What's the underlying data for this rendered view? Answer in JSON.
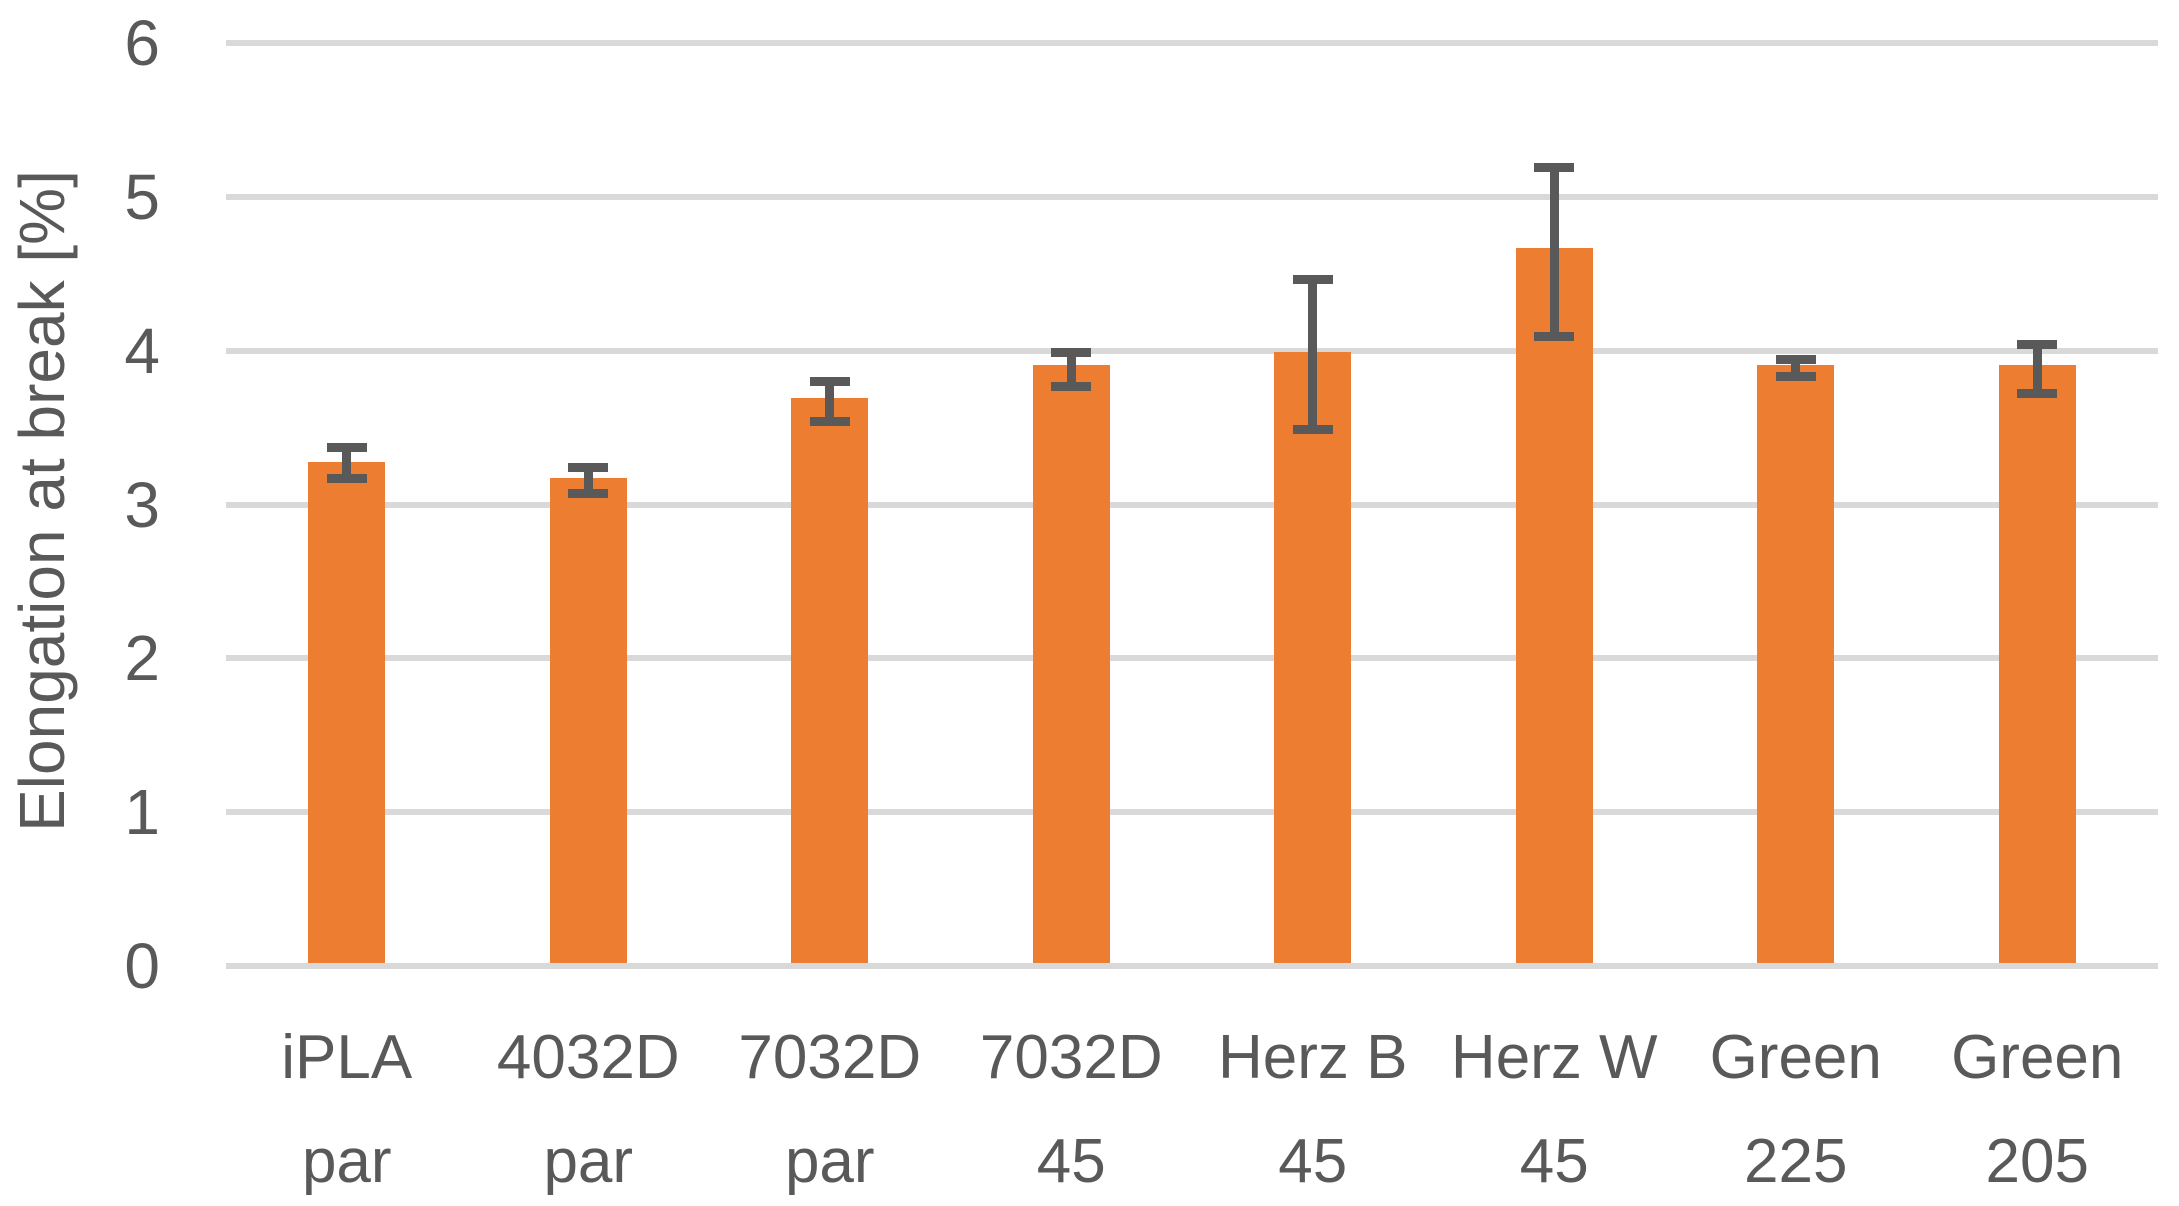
{
  "chart_data": {
    "type": "bar",
    "title": "",
    "ylabel": "Elongation at break [%]",
    "xlabel": "",
    "ylim": [
      0,
      6
    ],
    "yticks": [
      0,
      1,
      2,
      3,
      4,
      5,
      6
    ],
    "grid": true,
    "legend": false,
    "bar_color": "#ED7D31",
    "error_bar_color": "#595959",
    "gridline_color": "#D9D9D9",
    "text_color": "#595959",
    "categories": [
      [
        "iPLA",
        "par"
      ],
      [
        "4032D",
        "par"
      ],
      [
        "7032D",
        "par"
      ],
      [
        "7032D",
        "45"
      ],
      [
        "Herz B",
        "45"
      ],
      [
        "Herz W",
        "45"
      ],
      [
        "Green",
        "225"
      ],
      [
        "Green",
        "205"
      ]
    ],
    "series": [
      {
        "name": "Elongation at break [%]",
        "values": [
          3.26,
          3.15,
          3.67,
          3.89,
          3.97,
          4.65,
          3.89,
          3.89
        ],
        "error_low": [
          3.18,
          3.08,
          3.55,
          3.78,
          3.5,
          4.1,
          3.84,
          3.73
        ],
        "error_high": [
          3.38,
          3.25,
          3.81,
          4.0,
          4.47,
          5.2,
          3.95,
          4.05
        ]
      }
    ]
  }
}
